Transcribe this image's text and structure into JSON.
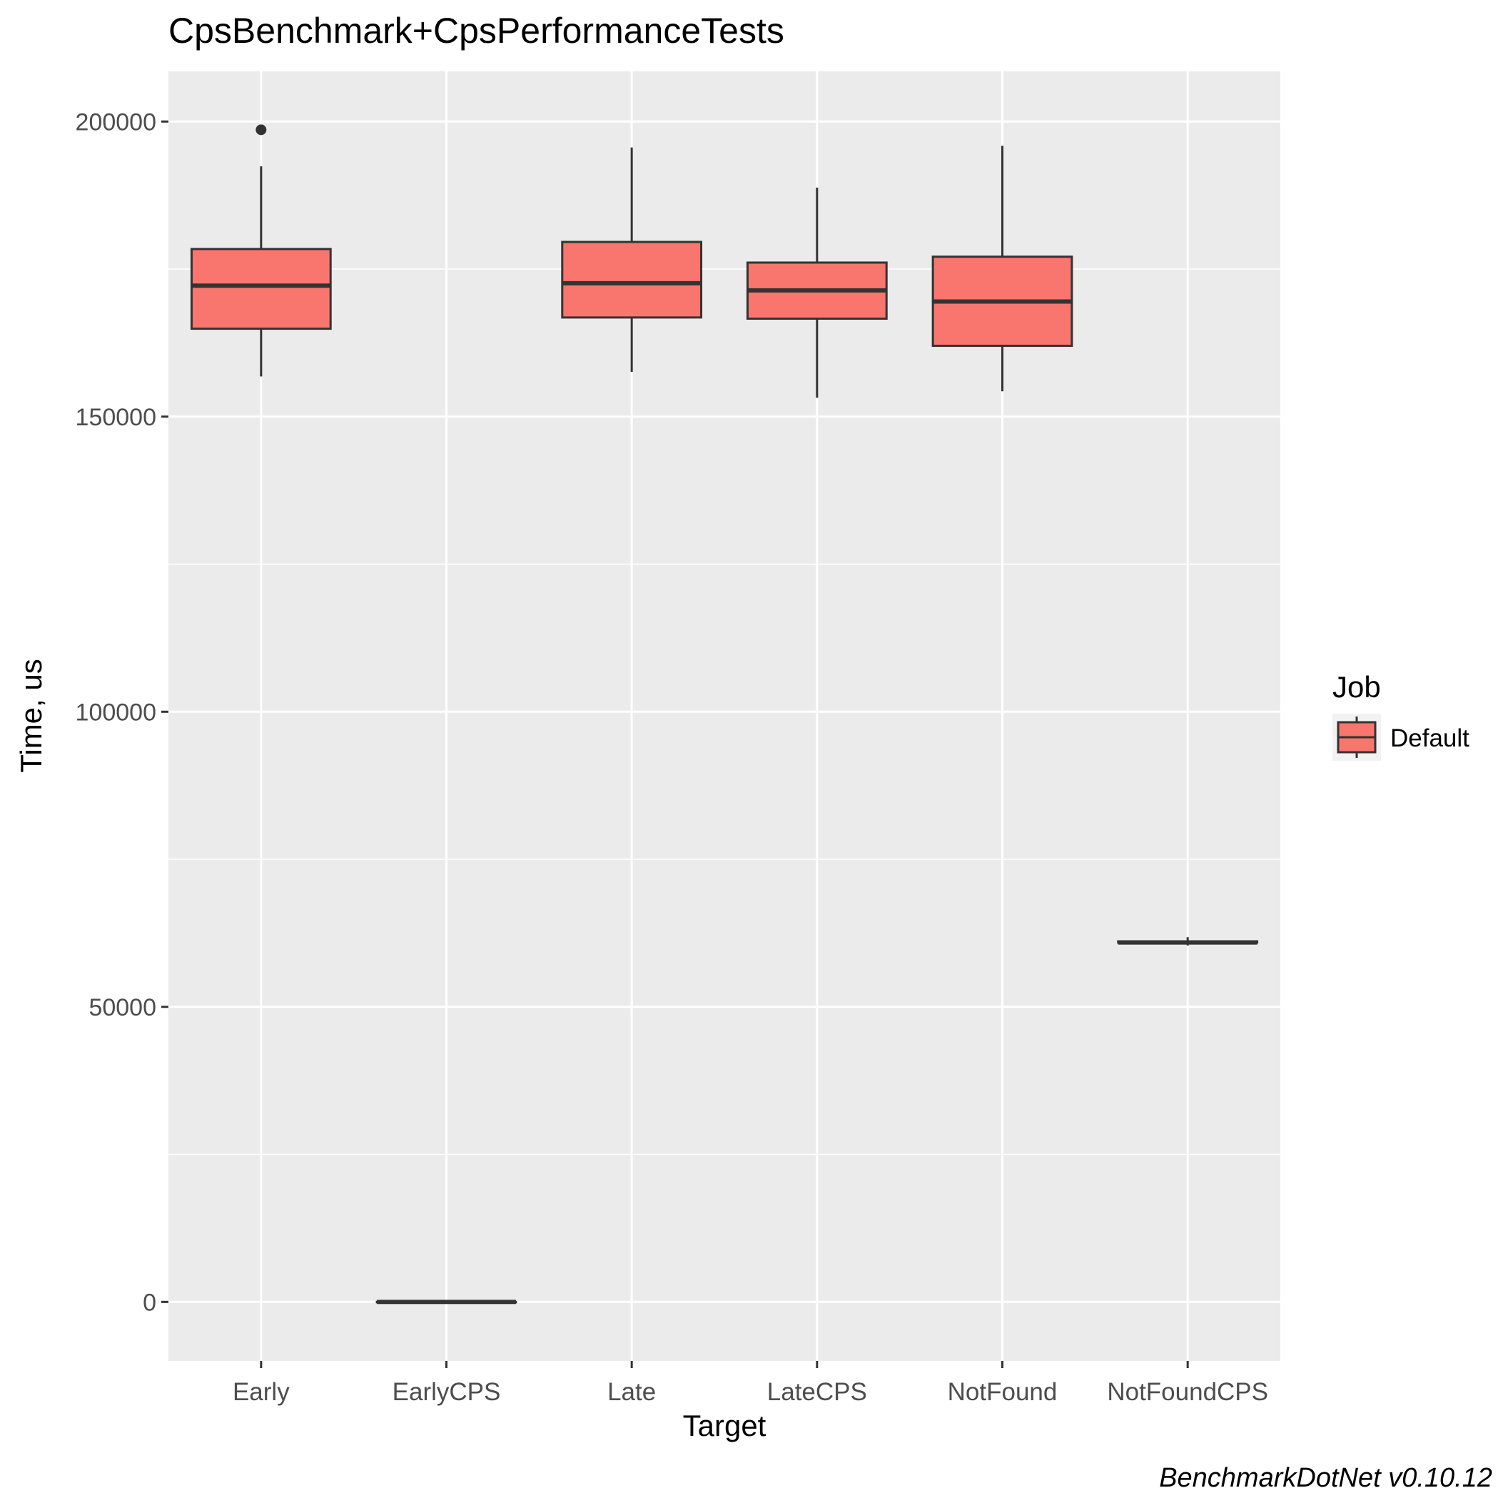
{
  "chart_data": {
    "type": "boxplot",
    "title": "CpsBenchmark+CpsPerformanceTests",
    "xlabel": "Target",
    "ylabel": "Time, us",
    "caption": "BenchmarkDotNet v0.10.12",
    "ylim": [
      -10000,
      208500
    ],
    "yticks": [
      0,
      50000,
      100000,
      150000,
      200000
    ],
    "yticks_minor": [
      25000,
      75000,
      125000,
      175000
    ],
    "grid": true,
    "legend": {
      "title": "Job",
      "placement": "right",
      "entries": [
        {
          "name": "Default",
          "color": "#F8766D"
        }
      ]
    },
    "colors": {
      "fill": "#F8766D",
      "stroke": "#333333",
      "panel": "#EBEBEB",
      "grid": "#FFFFFF"
    },
    "categories": [
      "Early",
      "EarlyCPS",
      "Late",
      "LateCPS",
      "NotFound",
      "NotFoundCPS"
    ],
    "series": [
      {
        "name": "Default",
        "boxes": [
          {
            "category": "Early",
            "whisker_low": 156800,
            "q1": 164900,
            "median": 172200,
            "q3": 178400,
            "whisker_high": 192400,
            "outliers": [
              198600
            ]
          },
          {
            "category": "EarlyCPS",
            "whisker_low": 0,
            "q1": 0,
            "median": 0,
            "q3": 0,
            "whisker_high": 0,
            "outliers": []
          },
          {
            "category": "Late",
            "whisker_low": 157600,
            "q1": 166800,
            "median": 172600,
            "q3": 179600,
            "whisker_high": 195600,
            "outliers": []
          },
          {
            "category": "LateCPS",
            "whisker_low": 153200,
            "q1": 166600,
            "median": 171400,
            "q3": 176100,
            "whisker_high": 188800,
            "outliers": []
          },
          {
            "category": "NotFound",
            "whisker_low": 154300,
            "q1": 162000,
            "median": 169500,
            "q3": 177100,
            "whisker_high": 195900,
            "outliers": []
          },
          {
            "category": "NotFoundCPS",
            "whisker_low": 60400,
            "q1": 60900,
            "median": 60900,
            "q3": 61100,
            "whisker_high": 61800,
            "outliers": []
          }
        ]
      }
    ]
  }
}
